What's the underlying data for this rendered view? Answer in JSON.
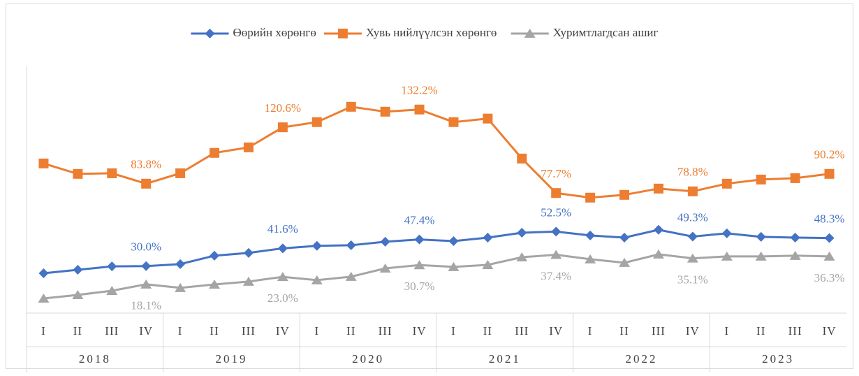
{
  "chart_data": {
    "type": "line",
    "categories": [
      "I",
      "II",
      "III",
      "IV",
      "I",
      "II",
      "III",
      "IV",
      "I",
      "II",
      "III",
      "IV",
      "I",
      "II",
      "III",
      "IV",
      "I",
      "II",
      "III",
      "IV",
      "I",
      "II",
      "III",
      "IV"
    ],
    "years": [
      "2018",
      "2019",
      "2020",
      "2021",
      "2022",
      "2023"
    ],
    "ylim": [
      0,
      185
    ],
    "legend": "top",
    "series": [
      {
        "name": "Өөрийн хөрөнгө",
        "color": "#4472c4",
        "marker": "diamond",
        "label_position": "above",
        "values": [
          25.3,
          27.6,
          29.8,
          30.0,
          31.3,
          36.8,
          38.6,
          41.6,
          43.2,
          43.6,
          45.9,
          47.4,
          46.3,
          48.6,
          51.8,
          52.5,
          50.0,
          48.6,
          53.7,
          49.3,
          51.4,
          49.1,
          48.6,
          48.3
        ],
        "value_labels": [
          null,
          null,
          null,
          "30.0%",
          null,
          null,
          null,
          "41.6%",
          null,
          null,
          null,
          "47.4%",
          null,
          null,
          null,
          "52.5%",
          null,
          null,
          null,
          "49.3%",
          null,
          null,
          null,
          "48.3%"
        ]
      },
      {
        "name": "Хувь нийлүүлсэн хөрөнгө",
        "color": "#ed7d31",
        "marker": "square",
        "label_position": "above",
        "values": [
          97.0,
          90.2,
          90.6,
          83.8,
          90.6,
          103.9,
          107.5,
          120.6,
          124.0,
          134.0,
          130.8,
          132.2,
          124.0,
          126.3,
          100.2,
          77.7,
          74.7,
          76.5,
          80.6,
          78.8,
          83.8,
          86.5,
          87.4,
          90.2
        ],
        "value_labels": [
          null,
          null,
          null,
          "83.8%",
          null,
          null,
          null,
          "120.6%",
          null,
          null,
          null,
          "132.2%",
          null,
          null,
          null,
          "77.7%",
          null,
          null,
          null,
          "78.8%",
          null,
          null,
          null,
          "90.2%"
        ]
      },
      {
        "name": "Хуримтлагдсан ашиг",
        "color": "#a5a5a5",
        "marker": "triangle",
        "label_position": "below",
        "values": [
          8.9,
          11.2,
          13.9,
          18.1,
          15.8,
          18.0,
          19.9,
          23.0,
          20.8,
          23.1,
          28.5,
          30.7,
          29.5,
          30.8,
          35.8,
          37.4,
          34.5,
          32.2,
          37.7,
          35.1,
          36.3,
          36.3,
          36.8,
          36.3
        ],
        "value_labels": [
          null,
          null,
          null,
          "18.1%",
          null,
          null,
          null,
          "23.0%",
          null,
          null,
          null,
          "30.7%",
          null,
          null,
          null,
          "37.4%",
          null,
          null,
          null,
          "35.1%",
          null,
          null,
          null,
          "36.3%"
        ]
      }
    ]
  }
}
